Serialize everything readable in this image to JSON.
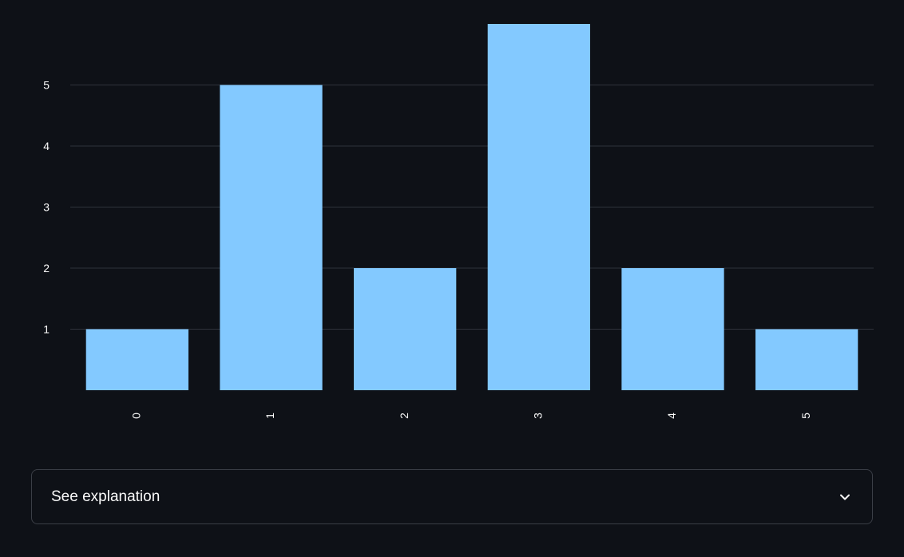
{
  "chart_data": {
    "type": "bar",
    "categories": [
      "0",
      "1",
      "2",
      "3",
      "4",
      "5"
    ],
    "values": [
      1,
      5,
      2,
      6,
      2,
      1
    ],
    "title": "",
    "xlabel": "",
    "ylabel": "",
    "yticks": [
      "1",
      "2",
      "3",
      "4",
      "5"
    ],
    "ylim": [
      0,
      6
    ],
    "grid": true,
    "bar_color": "#83c9ff",
    "background": "#0e1117"
  },
  "expander": {
    "label": "See explanation",
    "icon": "chevron-down-icon"
  }
}
